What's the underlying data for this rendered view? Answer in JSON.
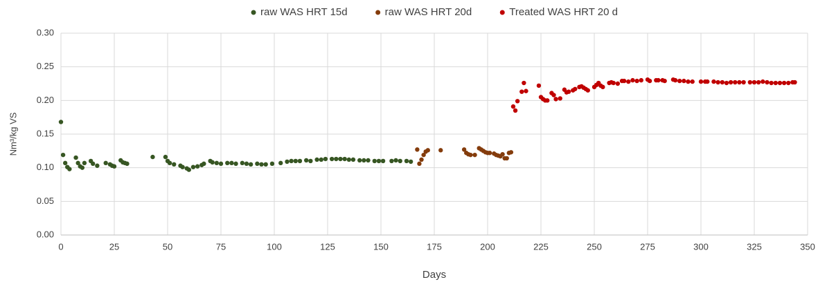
{
  "chart_data": {
    "type": "scatter",
    "x_label": "Days",
    "y_label": "Nm³/kg VS",
    "xlim": [
      0,
      350
    ],
    "xticks": [
      0,
      25,
      50,
      75,
      100,
      125,
      150,
      175,
      200,
      225,
      250,
      275,
      300,
      325,
      350
    ],
    "ylim": [
      0,
      0.3
    ],
    "yticks": [
      {
        "value": 0,
        "label": "0.00"
      },
      {
        "value": 0.05,
        "label": "0.05"
      },
      {
        "value": 0.1,
        "label": "0.10"
      },
      {
        "value": 0.15,
        "label": "0.15"
      },
      {
        "value": 0.2,
        "label": "0.20"
      },
      {
        "value": 0.25,
        "label": "0.25"
      },
      {
        "value": 0.3,
        "label": "0.30"
      }
    ],
    "grid": true,
    "legend": "top",
    "series": [
      {
        "name": "raw WAS HRT 15d",
        "color": "#375623",
        "x": [
          0,
          1,
          2,
          3,
          4,
          7,
          8,
          9,
          10,
          11,
          14,
          15,
          17,
          21,
          23,
          24,
          25,
          28,
          29,
          30,
          31,
          43,
          49,
          50,
          51,
          53,
          56,
          57,
          59,
          60,
          62,
          64,
          66,
          67,
          70,
          71,
          73,
          75,
          78,
          80,
          82,
          85,
          87,
          89,
          92,
          94,
          96,
          99,
          103,
          106,
          108,
          110,
          112,
          115,
          117,
          120,
          122,
          124,
          127,
          129,
          131,
          133,
          135,
          137,
          140,
          142,
          144,
          147,
          149,
          151,
          155,
          157,
          159,
          162,
          164
        ],
        "values": [
          0.168,
          0.119,
          0.107,
          0.101,
          0.098,
          0.115,
          0.107,
          0.102,
          0.1,
          0.107,
          0.11,
          0.106,
          0.103,
          0.107,
          0.105,
          0.103,
          0.102,
          0.111,
          0.108,
          0.107,
          0.106,
          0.116,
          0.116,
          0.11,
          0.107,
          0.105,
          0.103,
          0.101,
          0.099,
          0.097,
          0.101,
          0.102,
          0.104,
          0.106,
          0.11,
          0.108,
          0.107,
          0.106,
          0.107,
          0.107,
          0.106,
          0.107,
          0.106,
          0.105,
          0.106,
          0.105,
          0.105,
          0.106,
          0.107,
          0.109,
          0.11,
          0.11,
          0.11,
          0.111,
          0.11,
          0.112,
          0.112,
          0.113,
          0.113,
          0.113,
          0.113,
          0.113,
          0.112,
          0.112,
          0.111,
          0.111,
          0.111,
          0.11,
          0.11,
          0.11,
          0.11,
          0.111,
          0.11,
          0.11,
          0.109
        ]
      },
      {
        "name": "raw WAS HRT 20d",
        "color": "#843c0c",
        "x": [
          167,
          168,
          169,
          170,
          171,
          172,
          178,
          189,
          190,
          191,
          192,
          194,
          196,
          197,
          198,
          199,
          200,
          201,
          203,
          204,
          205,
          206,
          207,
          208,
          209,
          210,
          211
        ],
        "values": [
          0.127,
          0.106,
          0.112,
          0.119,
          0.124,
          0.126,
          0.126,
          0.127,
          0.122,
          0.12,
          0.119,
          0.119,
          0.129,
          0.127,
          0.125,
          0.123,
          0.122,
          0.122,
          0.121,
          0.119,
          0.118,
          0.117,
          0.12,
          0.114,
          0.114,
          0.122,
          0.123
        ]
      },
      {
        "name": "Treated WAS HRT 20 d",
        "color": "#c00000",
        "x": [
          212,
          213,
          214,
          216,
          217,
          218,
          224,
          225,
          226,
          227,
          228,
          230,
          231,
          232,
          234,
          236,
          237,
          238,
          240,
          241,
          243,
          244,
          245,
          246,
          247,
          250,
          251,
          252,
          253,
          254,
          257,
          258,
          259,
          261,
          263,
          264,
          266,
          268,
          270,
          272,
          275,
          276,
          279,
          280,
          282,
          283,
          287,
          288,
          290,
          292,
          294,
          296,
          300,
          302,
          303,
          306,
          308,
          310,
          312,
          314,
          316,
          318,
          320,
          323,
          325,
          327,
          329,
          331,
          333,
          335,
          337,
          339,
          341,
          343,
          344
        ],
        "values": [
          0.191,
          0.185,
          0.199,
          0.213,
          0.226,
          0.214,
          0.222,
          0.205,
          0.202,
          0.2,
          0.2,
          0.211,
          0.208,
          0.202,
          0.203,
          0.216,
          0.212,
          0.213,
          0.215,
          0.217,
          0.22,
          0.221,
          0.219,
          0.217,
          0.215,
          0.22,
          0.223,
          0.226,
          0.222,
          0.22,
          0.226,
          0.227,
          0.226,
          0.225,
          0.229,
          0.229,
          0.228,
          0.23,
          0.229,
          0.23,
          0.231,
          0.229,
          0.23,
          0.23,
          0.23,
          0.229,
          0.231,
          0.23,
          0.229,
          0.229,
          0.228,
          0.228,
          0.228,
          0.228,
          0.228,
          0.228,
          0.227,
          0.227,
          0.226,
          0.227,
          0.227,
          0.227,
          0.227,
          0.227,
          0.227,
          0.227,
          0.228,
          0.227,
          0.226,
          0.226,
          0.226,
          0.226,
          0.226,
          0.227,
          0.227
        ]
      }
    ]
  }
}
